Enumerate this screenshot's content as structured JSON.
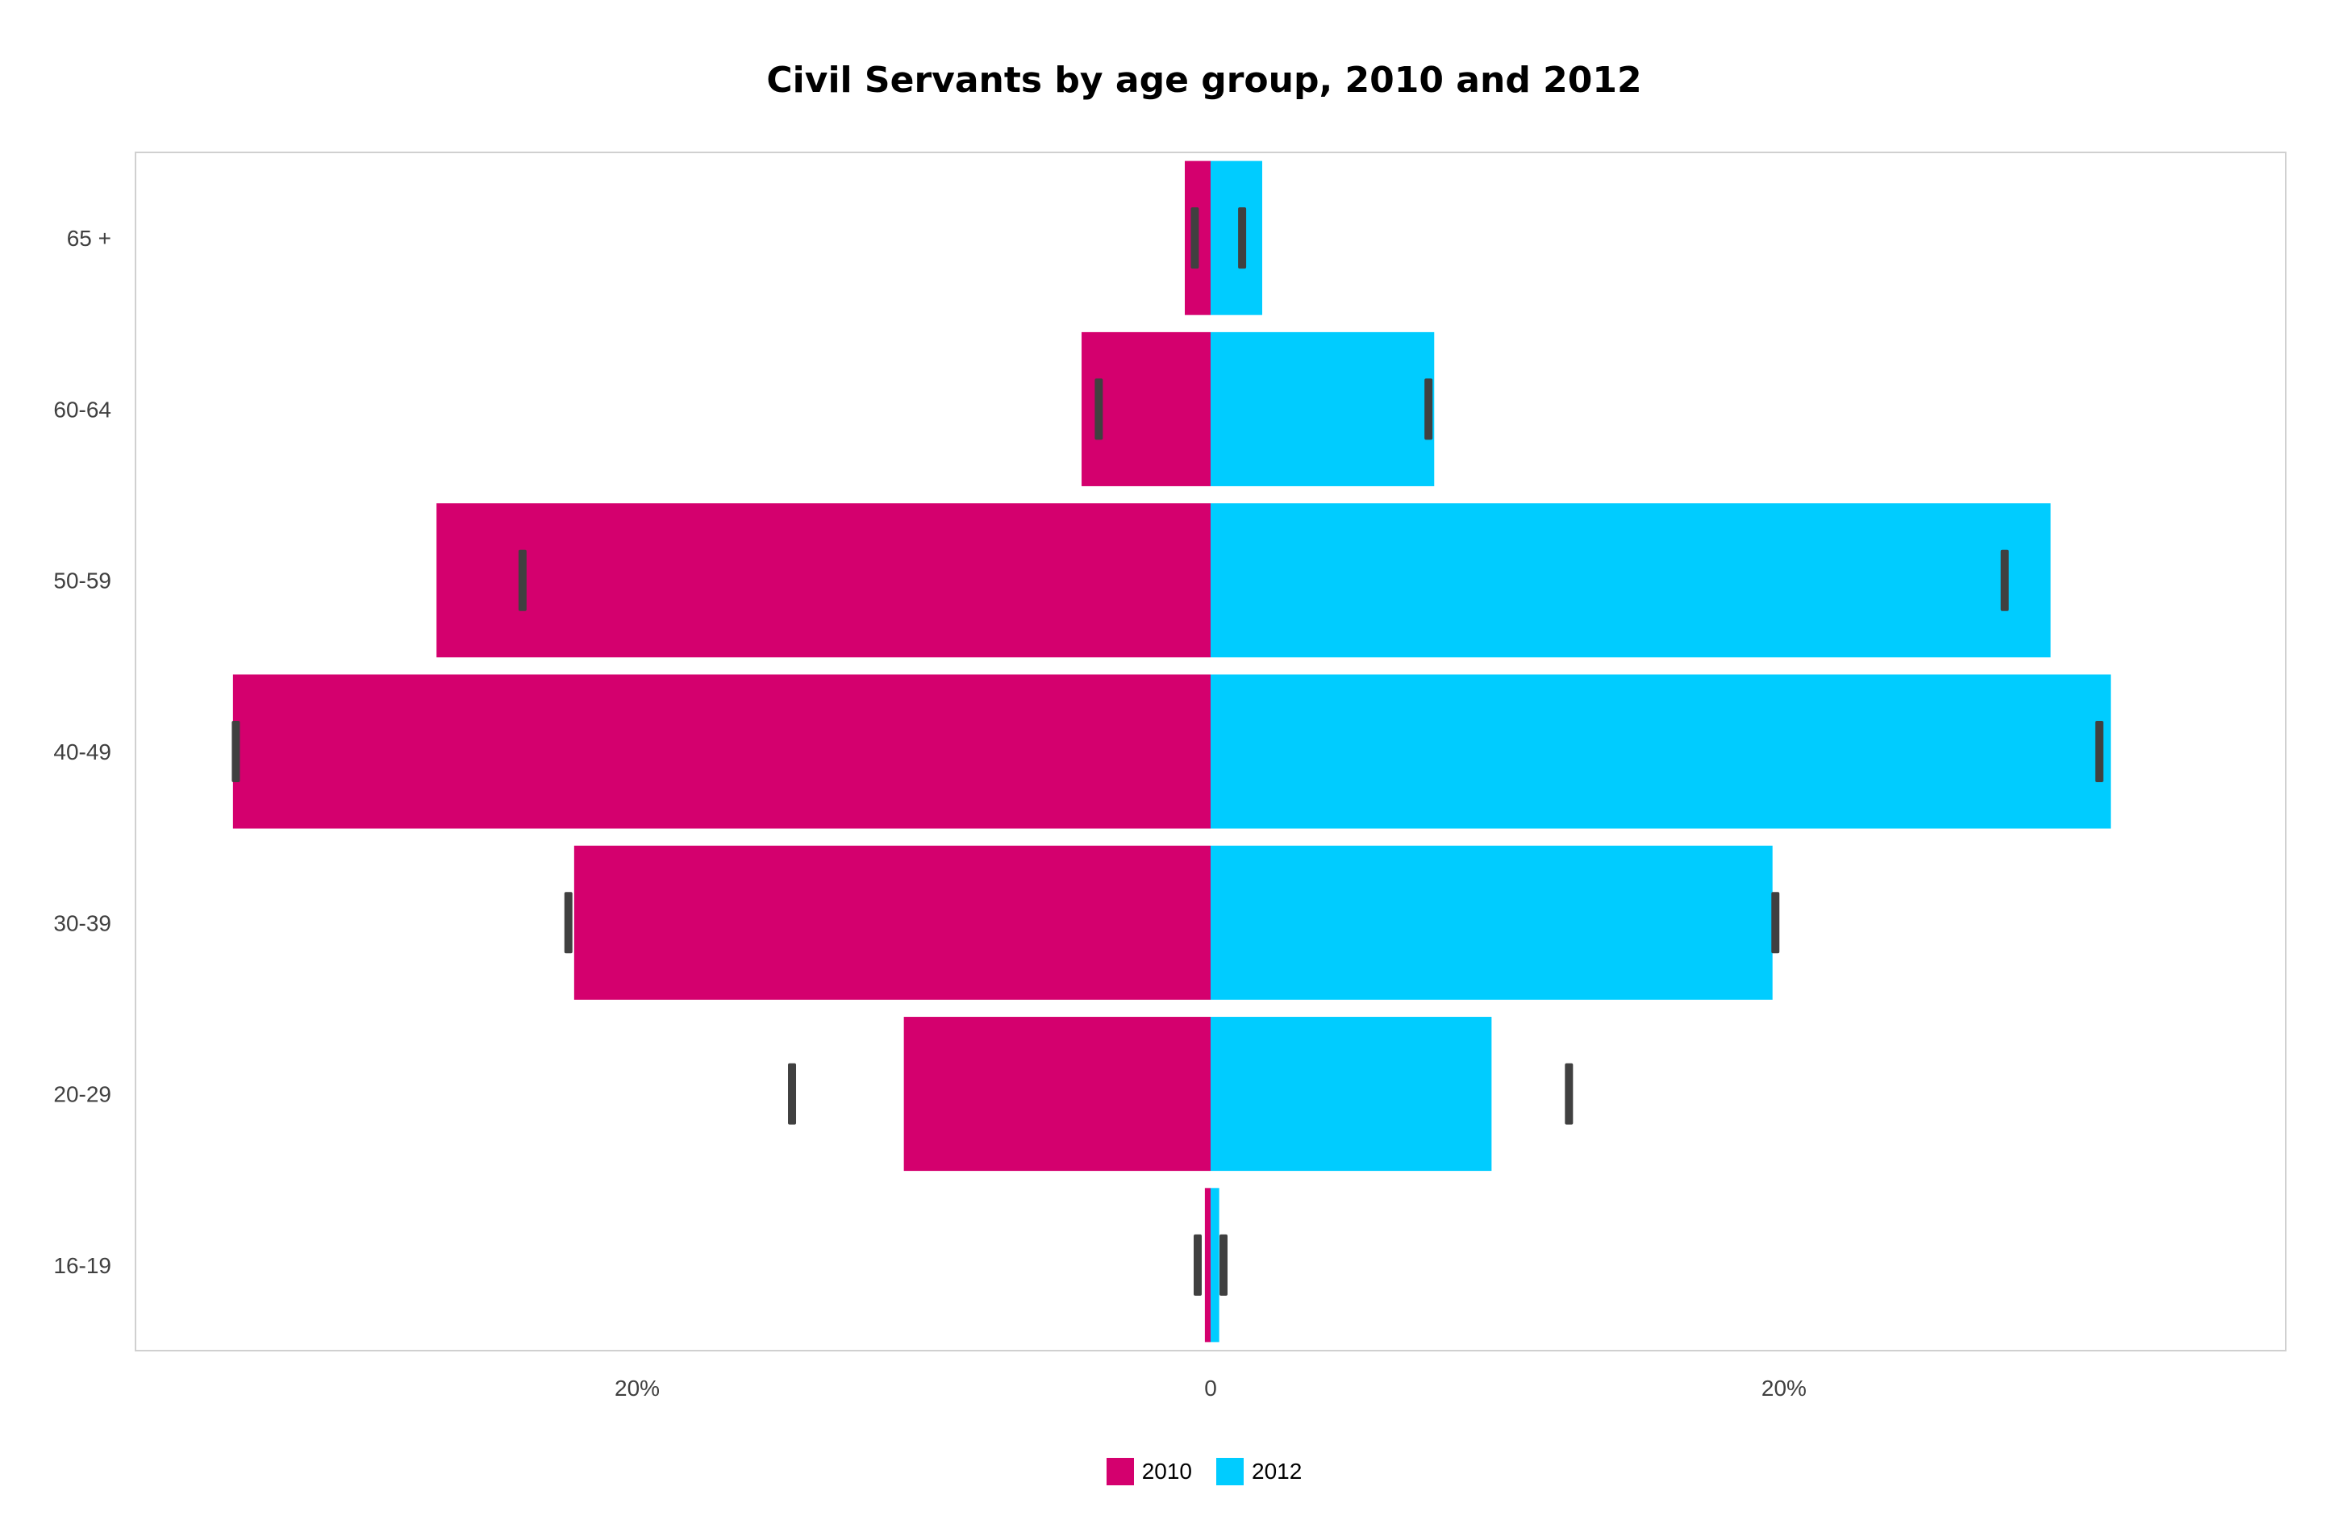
{
  "chart_data": {
    "type": "bar",
    "orientation": "horizontal-diverging",
    "title": "Civil Servants by age group, 2010 and 2012",
    "categories": [
      "65 +",
      "60-64",
      "50-59",
      "40-49",
      "30-39",
      "20-29",
      "16-19"
    ],
    "series": [
      {
        "name": "2010",
        "color": "#D4006E",
        "direction": "left",
        "values": [
          0.9,
          4.5,
          27.0,
          34.1,
          22.2,
          10.7,
          0.2
        ],
        "markers": [
          0.55,
          3.9,
          24.0,
          34.0,
          22.4,
          14.6,
          0.45
        ]
      },
      {
        "name": "2012",
        "color": "#00CCFF",
        "direction": "right",
        "values": [
          1.8,
          7.8,
          29.3,
          31.4,
          19.6,
          9.8,
          0.3
        ],
        "markers": [
          1.1,
          7.6,
          27.7,
          31.0,
          19.7,
          12.5,
          0.45
        ]
      }
    ],
    "x_tick_labels": [
      {
        "value": -20,
        "label": "20%"
      },
      {
        "value": 0,
        "label": "0"
      },
      {
        "value": 20,
        "label": "20%"
      }
    ],
    "xlim": [
      -37.5,
      37.5
    ],
    "marker_color": "#404040",
    "grid": false,
    "legend_position": "bottom"
  }
}
